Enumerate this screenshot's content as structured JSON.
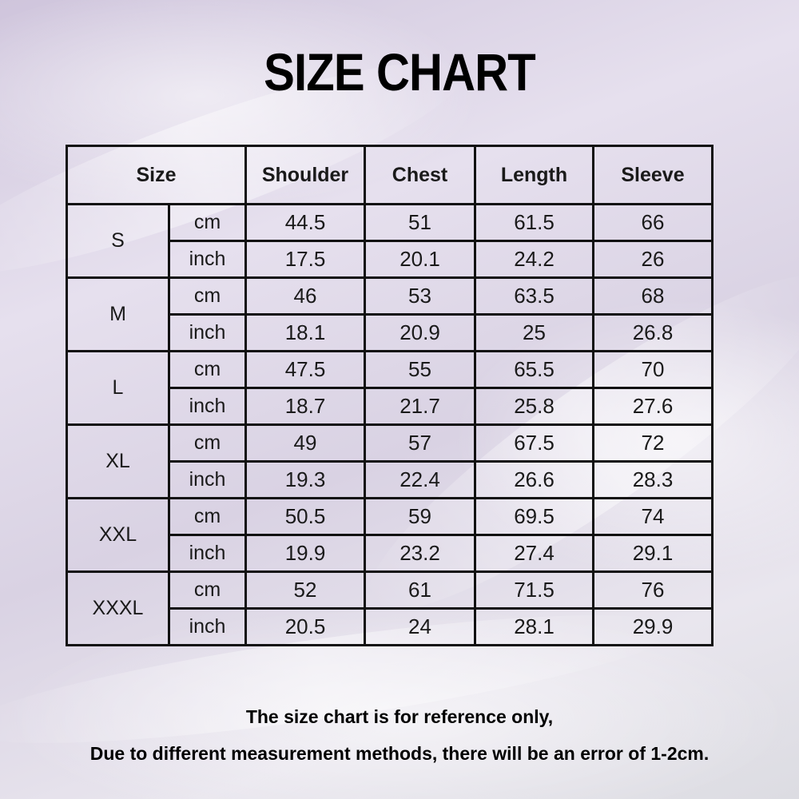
{
  "title": "SIZE CHART",
  "table": {
    "headers": [
      "Size",
      "Shoulder",
      "Chest",
      "Length",
      "Sleeve"
    ],
    "rows": [
      {
        "size": "S",
        "cm": [
          "44.5",
          "51",
          "61.5",
          "66"
        ],
        "inch": [
          "17.5",
          "20.1",
          "24.2",
          "26"
        ]
      },
      {
        "size": "M",
        "cm": [
          "46",
          "53",
          "63.5",
          "68"
        ],
        "inch": [
          "18.1",
          "20.9",
          "25",
          "26.8"
        ]
      },
      {
        "size": "L",
        "cm": [
          "47.5",
          "55",
          "65.5",
          "70"
        ],
        "inch": [
          "18.7",
          "21.7",
          "25.8",
          "27.6"
        ]
      },
      {
        "size": "XL",
        "cm": [
          "49",
          "57",
          "67.5",
          "72"
        ],
        "inch": [
          "19.3",
          "22.4",
          "26.6",
          "28.3"
        ]
      },
      {
        "size": "XXL",
        "cm": [
          "50.5",
          "59",
          "69.5",
          "74"
        ],
        "inch": [
          "19.9",
          "23.2",
          "27.4",
          "29.1"
        ]
      },
      {
        "size": "XXXL",
        "cm": [
          "52",
          "61",
          "71.5",
          "76"
        ],
        "inch": [
          "20.5",
          "24",
          "28.1",
          "29.9"
        ]
      }
    ],
    "unit_labels": {
      "cm": "cm",
      "inch": "inch"
    }
  },
  "notes": [
    "The size chart is for reference only,",
    "Due to different measurement methods, there will be an error of 1-2cm."
  ]
}
